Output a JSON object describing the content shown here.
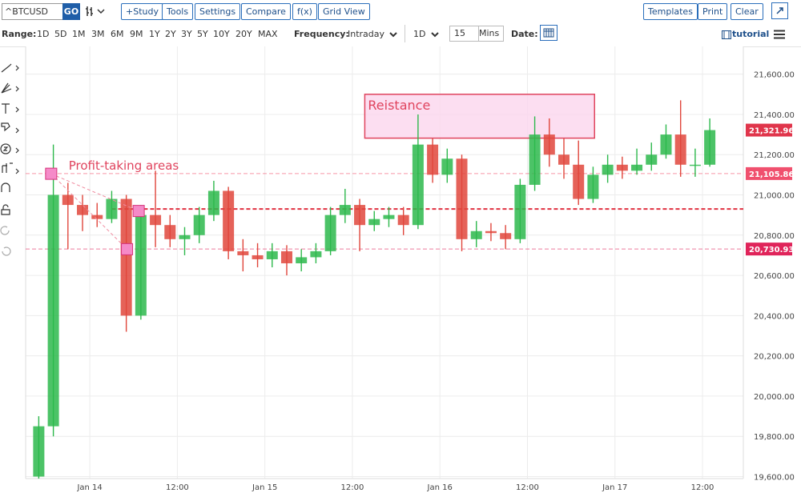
{
  "toolbar": {
    "symbol": "^BTCUSD",
    "go": "GO",
    "buttons": [
      "+Study",
      "Tools",
      "Settings",
      "Compare",
      "f(x)",
      "Grid View"
    ],
    "right_buttons": [
      "Templates",
      "Print",
      "Clear"
    ]
  },
  "range_bar": {
    "range_label": "Range:",
    "ranges": [
      "1D",
      "5D",
      "1M",
      "3M",
      "6M",
      "9M",
      "1Y",
      "2Y",
      "3Y",
      "5Y",
      "10Y",
      "20Y",
      "MAX"
    ],
    "frequency_label": "Frequency:",
    "frequency": "Intraday",
    "period": "1D",
    "interval": "15",
    "interval_unit": "Mins",
    "date_label": "Date:",
    "tutorial": "tutorial"
  },
  "chart_data": {
    "type": "candlestick",
    "x": [
      -7,
      -5,
      -3,
      -1,
      1,
      3,
      5,
      7,
      9,
      11,
      13,
      15,
      17,
      19,
      21,
      23,
      25,
      27,
      29,
      31,
      33,
      35,
      37,
      39,
      41,
      43,
      45,
      47,
      49,
      51,
      53,
      55,
      57,
      59,
      61,
      63,
      65,
      67,
      69,
      71,
      73,
      75,
      77,
      79,
      81,
      83,
      85
    ],
    "open": [
      19600,
      19850,
      21000,
      20950,
      20900,
      20880,
      20980,
      20400,
      20900,
      20850,
      20780,
      20800,
      20900,
      21020,
      20720,
      20700,
      20680,
      20720,
      20660,
      20690,
      20720,
      20900,
      20950,
      20850,
      20880,
      20900,
      20850,
      21250,
      21100,
      21180,
      20780,
      20820,
      20810,
      20780,
      21050,
      21300,
      21200,
      21150,
      20980,
      21100,
      21150,
      21120,
      21150,
      21200,
      21300,
      21150,
      21150
    ],
    "high": [
      19900,
      21250,
      21060,
      21000,
      20960,
      21020,
      21000,
      20950,
      21120,
      20900,
      20840,
      20940,
      21070,
      21040,
      20780,
      20760,
      20760,
      20750,
      20730,
      20760,
      20940,
      21030,
      20980,
      20920,
      20940,
      20940,
      21400,
      21280,
      21230,
      21200,
      20870,
      20860,
      20850,
      21080,
      21390,
      21380,
      21280,
      21270,
      21140,
      21200,
      21190,
      21230,
      21260,
      21350,
      21470,
      21230,
      21380
    ],
    "low": [
      19590,
      19800,
      20730,
      20820,
      20840,
      20860,
      20320,
      20380,
      20740,
      20740,
      20700,
      20760,
      20870,
      20680,
      20620,
      20640,
      20640,
      20600,
      20620,
      20660,
      20700,
      20860,
      20720,
      20820,
      20840,
      20800,
      20830,
      21060,
      21060,
      20720,
      20740,
      20770,
      20730,
      20760,
      21020,
      21140,
      21080,
      20950,
      20960,
      21060,
      21080,
      21100,
      21120,
      21180,
      21090,
      21090,
      21140
    ],
    "close": [
      19850,
      21000,
      20950,
      20900,
      20880,
      20980,
      20400,
      20900,
      20850,
      20780,
      20800,
      20900,
      21020,
      20720,
      20700,
      20680,
      20720,
      20660,
      20690,
      20720,
      20900,
      20950,
      20850,
      20880,
      20900,
      20850,
      21250,
      21100,
      21180,
      20780,
      20820,
      20810,
      20780,
      21050,
      21300,
      21200,
      21150,
      20980,
      21100,
      21150,
      21120,
      21150,
      21200,
      21300,
      21150,
      21150,
      21321.96
    ],
    "up_color": "#2db84c",
    "down_color": "#e0463c",
    "xlim": [
      -8.8,
      89.6
    ],
    "ylim": [
      19590,
      21710
    ],
    "xticks": [
      {
        "value": 0,
        "label": "Jan 14"
      },
      {
        "value": 12,
        "label": "12:00"
      },
      {
        "value": 24,
        "label": "Jan 15"
      },
      {
        "value": 36,
        "label": "12:00"
      },
      {
        "value": 48,
        "label": "Jan 16"
      },
      {
        "value": 60,
        "label": "12:00"
      },
      {
        "value": 72,
        "label": "Jan 17"
      },
      {
        "value": 84,
        "label": "12:00"
      }
    ],
    "yticks": [
      {
        "value": 19600,
        "label": "19,600.00"
      },
      {
        "value": 19800,
        "label": "19,800.00"
      },
      {
        "value": 20000,
        "label": "20,000.00"
      },
      {
        "value": 20200,
        "label": "20,200.00"
      },
      {
        "value": 20400,
        "label": "20,400.00"
      },
      {
        "value": 20600,
        "label": "20,600.00"
      },
      {
        "value": 20800,
        "label": "20,800.00"
      },
      {
        "value": 21000,
        "label": "21,000.00"
      },
      {
        "value": 21200,
        "label": "21,200.00"
      },
      {
        "value": 21400,
        "label": "21,400.00"
      },
      {
        "value": 21600,
        "label": "21,600.00"
      }
    ],
    "grid": true,
    "price_lines": [
      {
        "value": 21321.96,
        "label": "21,321.96",
        "color": "#e0354b",
        "line": false
      },
      {
        "value": 21105.86,
        "label": "21,105.86",
        "color": "#f0506e",
        "line": true
      },
      {
        "value": 20730.93,
        "label": "20,730.93",
        "color": "#e0245a",
        "line": true
      }
    ],
    "level_lines": [
      {
        "value": 20930,
        "color": "#e03040"
      }
    ],
    "annotations": {
      "profit_text": "Profit-taking areas",
      "profit_text_x": -2.9,
      "profit_text_y": 21150,
      "markers": [
        {
          "x": -5.3,
          "y": 21105
        },
        {
          "x": 6.7,
          "y": 20920
        },
        {
          "x": 5.1,
          "y": 20730
        }
      ],
      "resistance_text": "Reistance",
      "resistance_x": [
        37.7,
        69.2
      ],
      "resistance_y": [
        21282,
        21500
      ]
    }
  }
}
